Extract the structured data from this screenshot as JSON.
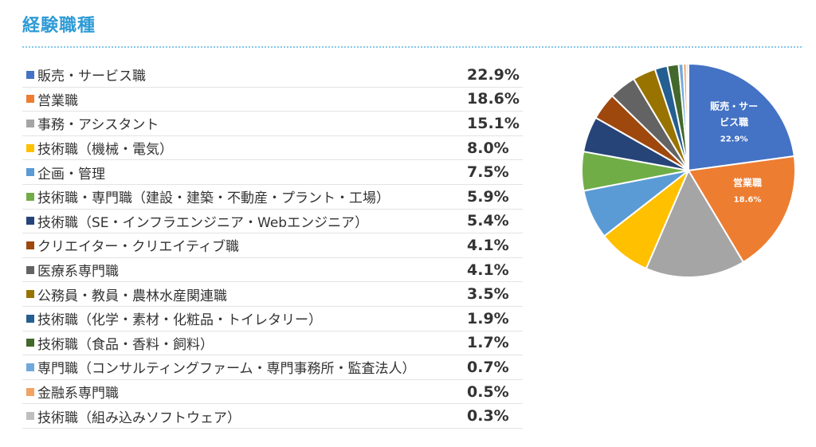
{
  "title": "経験職種",
  "rows": [
    {
      "label": "販売・サービス職",
      "value": "22.9%",
      "color": "#4472c4"
    },
    {
      "label": "営業職",
      "value": "18.6%",
      "color": "#ed7d31"
    },
    {
      "label": "事務・アシスタント",
      "value": "15.1%",
      "color": "#a5a5a5"
    },
    {
      "label": "技術職（機械・電気）",
      "value": "8.0%",
      "color": "#ffc000"
    },
    {
      "label": "企画・管理",
      "value": "7.5%",
      "color": "#5b9bd5"
    },
    {
      "label": "技術職・専門職（建設・建築・不動産・プラント・工場）",
      "value": "5.9%",
      "color": "#70ad47"
    },
    {
      "label": "技術職（SE・インフラエンジニア・Webエンジニア）",
      "value": "5.4%",
      "color": "#264478"
    },
    {
      "label": "クリエイター・クリエイティブ職",
      "value": "4.1%",
      "color": "#9e480e"
    },
    {
      "label": "医療系専門職",
      "value": "4.1%",
      "color": "#636363"
    },
    {
      "label": "公務員・教員・農林水産関連職",
      "value": "3.5%",
      "color": "#997300"
    },
    {
      "label": "技術職（化学・素材・化粧品・トイレタリー）",
      "value": "1.9%",
      "color": "#255e91"
    },
    {
      "label": "技術職（食品・香料・飼料）",
      "value": "1.7%",
      "color": "#43682b"
    },
    {
      "label": "専門職（コンサルティングファーム・専門事務所・監査法人）",
      "value": "0.7%",
      "color": "#6fa8dc"
    },
    {
      "label": "金融系専門職",
      "value": "0.5%",
      "color": "#f4a261"
    },
    {
      "label": "技術職（組み込みソフトウェア）",
      "value": "0.3%",
      "color": "#bfbfbf"
    }
  ],
  "chart_data": {
    "type": "pie",
    "categories": [
      "販売・サービス職",
      "営業職",
      "事務・アシスタント",
      "技術職（機械・電気）",
      "企画・管理",
      "技術職・専門職（建設・建築・不動産・プラント・工場）",
      "技術職（SE・インフラエンジニア・Webエンジニア）",
      "クリエイター・クリエイティブ職",
      "医療系専門職",
      "公務員・教員・農林水産関連職",
      "技術職（化学・素材・化粧品・トイレタリー）",
      "技術職（食品・香料・飼料）",
      "専門職（コンサルティングファーム・専門事務所・監査法人）",
      "金融系専門職",
      "技術職（組み込みソフトウェア）"
    ],
    "values": [
      22.9,
      18.6,
      15.1,
      8.0,
      7.5,
      5.9,
      5.4,
      4.1,
      4.1,
      3.5,
      1.9,
      1.7,
      0.7,
      0.5,
      0.3
    ],
    "colors": [
      "#4472c4",
      "#ed7d31",
      "#a5a5a5",
      "#ffc000",
      "#5b9bd5",
      "#70ad47",
      "#264478",
      "#9e480e",
      "#636363",
      "#997300",
      "#255e91",
      "#43682b",
      "#6fa8dc",
      "#f4a261",
      "#bfbfbf"
    ],
    "slice_labels": [
      {
        "index": 0,
        "lines": [
          "販売・サー",
          "ビス職"
        ],
        "pct": "22.9%"
      },
      {
        "index": 1,
        "lines": [
          "営業職"
        ],
        "pct": "18.6%"
      }
    ],
    "legend": "left"
  }
}
